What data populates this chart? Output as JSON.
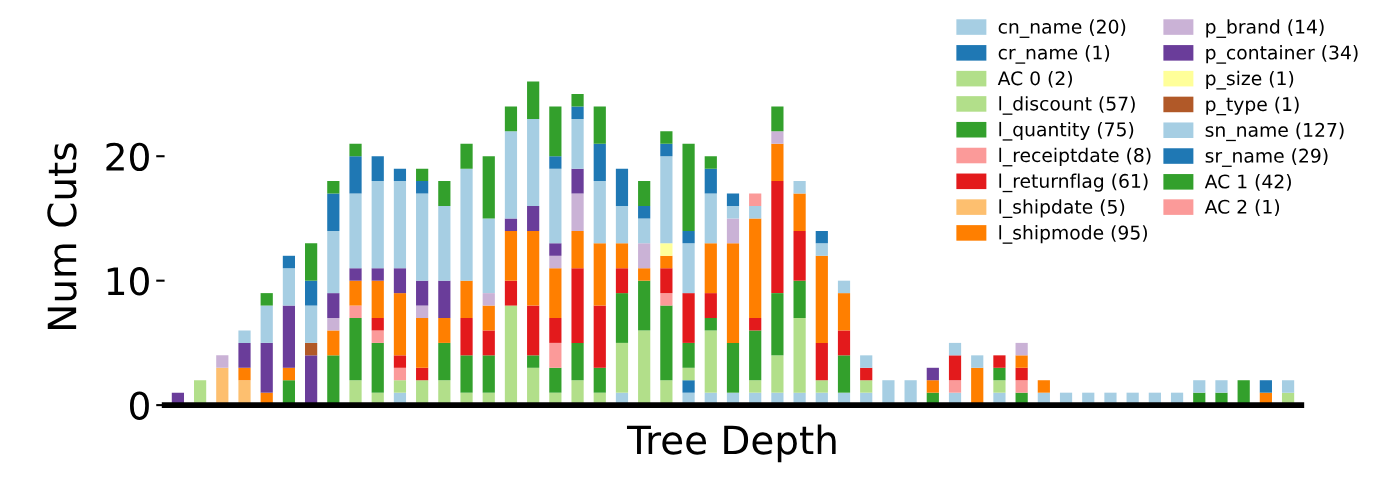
{
  "chart_data": {
    "type": "bar",
    "stacked": true,
    "xlabel": "Tree Depth",
    "ylabel": "Num Cuts",
    "categories": [
      null,
      null,
      null,
      null,
      null,
      null,
      null,
      null,
      null,
      null,
      null,
      null,
      null,
      null,
      null,
      null,
      null,
      null,
      null,
      null,
      null,
      null,
      null,
      null,
      null,
      null,
      null,
      null,
      null,
      null,
      null,
      null,
      null,
      null,
      null,
      null,
      null,
      null,
      null,
      null,
      null,
      null,
      null,
      null,
      null,
      null,
      null,
      null,
      null,
      null,
      null
    ],
    "ylim": [
      0,
      27
    ],
    "yticks": [
      0,
      10,
      20
    ],
    "grid": false,
    "legend": "top right",
    "tick_labels": "y",
    "series": [
      {
        "name": "cn_name (20)",
        "color": "#a6cee3",
        "values": [
          0,
          0,
          0,
          0,
          0,
          0,
          0,
          0,
          0,
          0,
          1,
          0,
          0,
          0,
          0,
          0,
          0,
          0,
          0,
          0,
          1,
          0,
          0,
          1,
          1,
          1,
          1,
          1,
          1,
          1,
          1,
          1,
          0,
          0,
          0,
          1,
          0,
          1,
          0,
          1,
          0,
          0,
          0,
          0,
          0,
          0,
          0,
          0,
          0,
          0,
          0
        ]
      },
      {
        "name": "cr_name (1)",
        "color": "#1f78b4",
        "values": [
          0,
          0,
          0,
          0,
          0,
          0,
          0,
          0,
          0,
          0,
          0,
          0,
          0,
          0,
          0,
          0,
          0,
          0,
          0,
          0,
          0,
          0,
          0,
          1,
          0,
          0,
          0,
          0,
          0,
          0,
          0,
          0,
          0,
          0,
          0,
          0,
          0,
          0,
          0,
          0,
          0,
          0,
          0,
          0,
          0,
          0,
          0,
          0,
          0,
          0,
          0
        ]
      },
      {
        "name": "AC 0 (2)",
        "color": "#b2df8a",
        "values": [
          0,
          2,
          0,
          0,
          0,
          0,
          0,
          0,
          0,
          0,
          0,
          0,
          0,
          0,
          0,
          0,
          0,
          0,
          0,
          0,
          0,
          0,
          0,
          0,
          0,
          0,
          0,
          0,
          0,
          0,
          0,
          0,
          0,
          0,
          0,
          0,
          0,
          0,
          0,
          0,
          0,
          0,
          0,
          0,
          0,
          0,
          0,
          0,
          0,
          0,
          0
        ]
      },
      {
        "name": "l_discount (57)",
        "color": "#b2df8a",
        "values": [
          0,
          0,
          0,
          0,
          0,
          0,
          0,
          0,
          2,
          1,
          1,
          2,
          2,
          1,
          1,
          8,
          3,
          1,
          2,
          1,
          4,
          6,
          2,
          1,
          5,
          0,
          1,
          3,
          6,
          1,
          0,
          1,
          0,
          0,
          0,
          0,
          0,
          1,
          0,
          0,
          0,
          0,
          0,
          0,
          0,
          0,
          0,
          0,
          0,
          0,
          1
        ]
      },
      {
        "name": "l_quantity (75)",
        "color": "#33a02c",
        "values": [
          0,
          0,
          0,
          0,
          0,
          2,
          0,
          4,
          5,
          4,
          0,
          0,
          3,
          3,
          3,
          0,
          1,
          2,
          3,
          2,
          4,
          4,
          6,
          2,
          1,
          4,
          4,
          5,
          3,
          0,
          3,
          0,
          0,
          0,
          1,
          0,
          0,
          1,
          1,
          0,
          0,
          0,
          0,
          0,
          0,
          0,
          1,
          1,
          2,
          0,
          0
        ]
      },
      {
        "name": "l_receiptdate (8)",
        "color": "#fb9a99",
        "values": [
          0,
          0,
          0,
          0,
          0,
          0,
          0,
          0,
          1,
          1,
          1,
          0,
          0,
          0,
          0,
          0,
          0,
          2,
          0,
          0,
          0,
          0,
          1,
          0,
          0,
          0,
          0,
          0,
          0,
          0,
          0,
          0,
          0,
          0,
          0,
          1,
          0,
          0,
          1,
          0,
          0,
          0,
          0,
          0,
          0,
          0,
          0,
          0,
          0,
          0,
          0
        ]
      },
      {
        "name": "l_returnflag (61)",
        "color": "#e31a1c",
        "values": [
          0,
          0,
          0,
          0,
          0,
          0,
          0,
          0,
          0,
          1,
          1,
          1,
          0,
          3,
          2,
          2,
          4,
          2,
          6,
          5,
          2,
          0,
          2,
          4,
          2,
          0,
          1,
          9,
          4,
          3,
          2,
          1,
          0,
          0,
          0,
          2,
          0,
          1,
          1,
          0,
          0,
          0,
          0,
          0,
          0,
          0,
          0,
          0,
          0,
          0,
          0
        ]
      },
      {
        "name": "l_shipdate (5)",
        "color": "#fdbf6f",
        "values": [
          0,
          0,
          3,
          2,
          0,
          0,
          0,
          0,
          0,
          0,
          0,
          0,
          0,
          0,
          0,
          0,
          0,
          0,
          0,
          0,
          0,
          0,
          0,
          0,
          0,
          0,
          0,
          0,
          0,
          0,
          0,
          0,
          0,
          0,
          0,
          0,
          0,
          0,
          0,
          0,
          0,
          0,
          0,
          0,
          0,
          0,
          0,
          0,
          0,
          0,
          0
        ]
      },
      {
        "name": "l_shipmode (95)",
        "color": "#ff7f00",
        "values": [
          0,
          0,
          0,
          1,
          1,
          1,
          0,
          2,
          2,
          3,
          5,
          4,
          2,
          3,
          2,
          4,
          6,
          4,
          3,
          5,
          2,
          1,
          1,
          0,
          4,
          8,
          8,
          3,
          3,
          7,
          3,
          0,
          0,
          0,
          1,
          0,
          3,
          0,
          1,
          1,
          0,
          0,
          0,
          0,
          0,
          0,
          0,
          0,
          0,
          1,
          0
        ]
      },
      {
        "name": "p_brand (14)",
        "color": "#cab2d6",
        "values": [
          0,
          0,
          1,
          0,
          0,
          0,
          0,
          1,
          0,
          0,
          0,
          1,
          0,
          0,
          1,
          0,
          0,
          1,
          3,
          0,
          0,
          2,
          0,
          0,
          0,
          2,
          0,
          1,
          0,
          0,
          0,
          0,
          0,
          0,
          0,
          0,
          0,
          0,
          1,
          0,
          0,
          0,
          0,
          0,
          0,
          0,
          0,
          0,
          0,
          0,
          0
        ]
      },
      {
        "name": "p_container (34)",
        "color": "#6a3d9a",
        "values": [
          1,
          0,
          0,
          2,
          4,
          5,
          4,
          2,
          1,
          1,
          2,
          2,
          3,
          0,
          0,
          1,
          2,
          1,
          2,
          0,
          0,
          0,
          0,
          0,
          0,
          0,
          0,
          0,
          0,
          0,
          0,
          0,
          0,
          0,
          1,
          0,
          0,
          0,
          0,
          0,
          0,
          0,
          0,
          0,
          0,
          0,
          0,
          0,
          0,
          0,
          0
        ]
      },
      {
        "name": "p_size (1)",
        "color": "#ffff99",
        "values": [
          0,
          0,
          0,
          0,
          0,
          0,
          0,
          0,
          0,
          0,
          0,
          0,
          0,
          0,
          0,
          0,
          0,
          0,
          0,
          0,
          0,
          0,
          1,
          0,
          0,
          0,
          0,
          0,
          0,
          0,
          0,
          0,
          0,
          0,
          0,
          0,
          0,
          0,
          0,
          0,
          0,
          0,
          0,
          0,
          0,
          0,
          0,
          0,
          0,
          0,
          0
        ]
      },
      {
        "name": "p_type (1)",
        "color": "#b15928",
        "values": [
          0,
          0,
          0,
          0,
          0,
          0,
          1,
          0,
          0,
          0,
          0,
          0,
          0,
          0,
          0,
          0,
          0,
          0,
          0,
          0,
          0,
          0,
          0,
          0,
          0,
          0,
          0,
          0,
          0,
          0,
          0,
          0,
          0,
          0,
          0,
          0,
          0,
          0,
          0,
          0,
          0,
          0,
          0,
          0,
          0,
          0,
          0,
          0,
          0,
          0,
          0
        ]
      },
      {
        "name": "sn_name (127)",
        "color": "#a6cee3",
        "values": [
          0,
          0,
          0,
          1,
          3,
          3,
          3,
          5,
          6,
          7,
          7,
          7,
          6,
          9,
          6,
          7,
          7,
          6,
          4,
          5,
          3,
          2,
          7,
          4,
          4,
          1,
          1,
          0,
          1,
          1,
          1,
          1,
          2,
          2,
          0,
          1,
          1,
          0,
          0,
          0,
          1,
          1,
          1,
          1,
          1,
          1,
          1,
          1,
          0,
          0,
          1
        ]
      },
      {
        "name": "sr_name (29)",
        "color": "#1f78b4",
        "values": [
          0,
          0,
          0,
          0,
          0,
          1,
          2,
          3,
          3,
          2,
          1,
          1,
          0,
          0,
          0,
          0,
          0,
          1,
          1,
          3,
          3,
          1,
          1,
          1,
          2,
          1,
          0,
          0,
          0,
          1,
          0,
          0,
          0,
          0,
          0,
          0,
          0,
          0,
          0,
          0,
          0,
          0,
          0,
          0,
          0,
          0,
          0,
          0,
          0,
          1,
          0
        ]
      },
      {
        "name": "AC 1 (42)",
        "color": "#33a02c",
        "values": [
          0,
          0,
          0,
          0,
          1,
          0,
          3,
          1,
          1,
          0,
          0,
          1,
          2,
          2,
          5,
          2,
          3,
          4,
          1,
          3,
          0,
          2,
          1,
          7,
          1,
          0,
          0,
          2,
          0,
          0,
          0,
          0,
          0,
          0,
          0,
          0,
          0,
          0,
          0,
          0,
          0,
          0,
          0,
          0,
          0,
          0,
          0,
          0,
          0,
          0,
          0
        ]
      },
      {
        "name": "AC 2 (1)",
        "color": "#fb9a99",
        "values": [
          0,
          0,
          0,
          0,
          0,
          0,
          0,
          0,
          0,
          0,
          0,
          0,
          0,
          0,
          0,
          0,
          0,
          0,
          0,
          0,
          0,
          0,
          0,
          0,
          0,
          0,
          1,
          0,
          0,
          0,
          0,
          0,
          0,
          0,
          0,
          0,
          0,
          0,
          0,
          0,
          0,
          0,
          0,
          0,
          0,
          0,
          0,
          0,
          0,
          0,
          0
        ]
      }
    ]
  }
}
